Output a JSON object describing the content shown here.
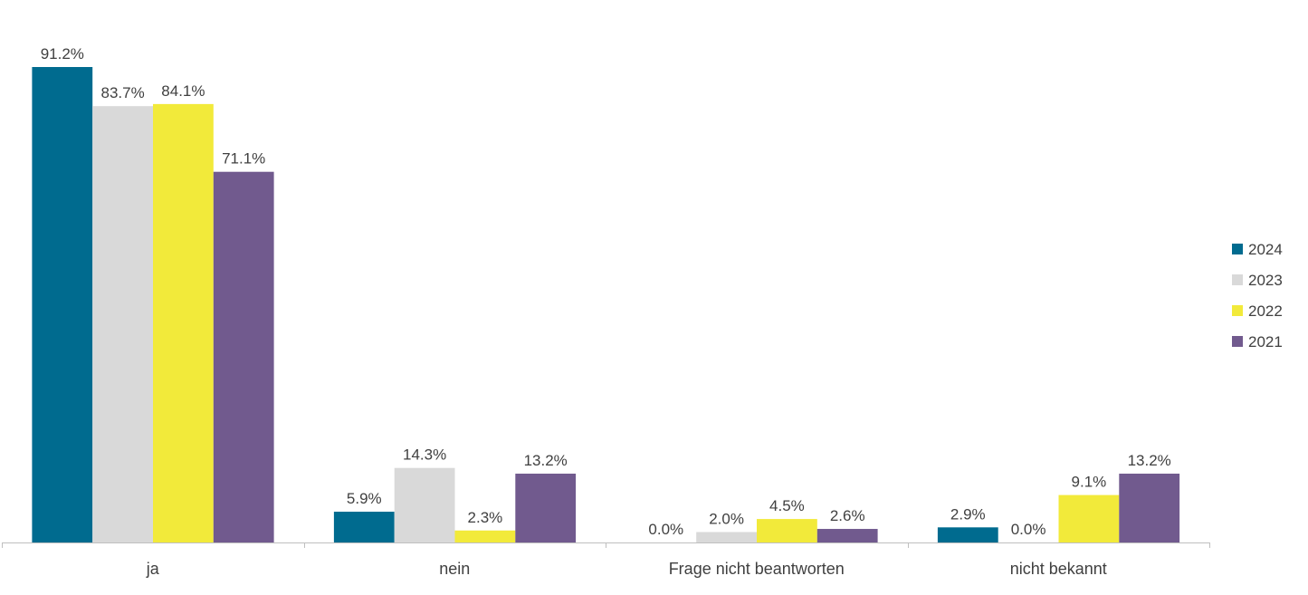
{
  "chart_data": {
    "type": "bar",
    "categories": [
      "ja",
      "nein",
      "Frage nicht beantworten",
      "nicht bekannt"
    ],
    "series": [
      {
        "name": "2024",
        "color": "#006B8F",
        "values": [
          91.2,
          5.9,
          0.0,
          2.9
        ],
        "labels": [
          "91.2%",
          "5.9%",
          "0.0%",
          "2.9%"
        ]
      },
      {
        "name": "2023",
        "color": "#D9D9D9",
        "values": [
          83.7,
          14.3,
          2.0,
          0.0
        ],
        "labels": [
          "83.7%",
          "14.3%",
          "2.0%",
          "0.0%"
        ]
      },
      {
        "name": "2022",
        "color": "#F2EA3A",
        "values": [
          84.1,
          2.3,
          4.5,
          9.1
        ],
        "labels": [
          "84.1%",
          "2.3%",
          "4.5%",
          "9.1%"
        ]
      },
      {
        "name": "2021",
        "color": "#715A8E",
        "values": [
          71.1,
          13.2,
          2.6,
          13.2
        ],
        "labels": [
          "71.1%",
          "13.2%",
          "2.6%",
          "13.2%"
        ]
      }
    ],
    "ylim": [
      0,
      100
    ],
    "grid": false,
    "legend": "right",
    "title": "",
    "xlabel": "",
    "ylabel": ""
  }
}
